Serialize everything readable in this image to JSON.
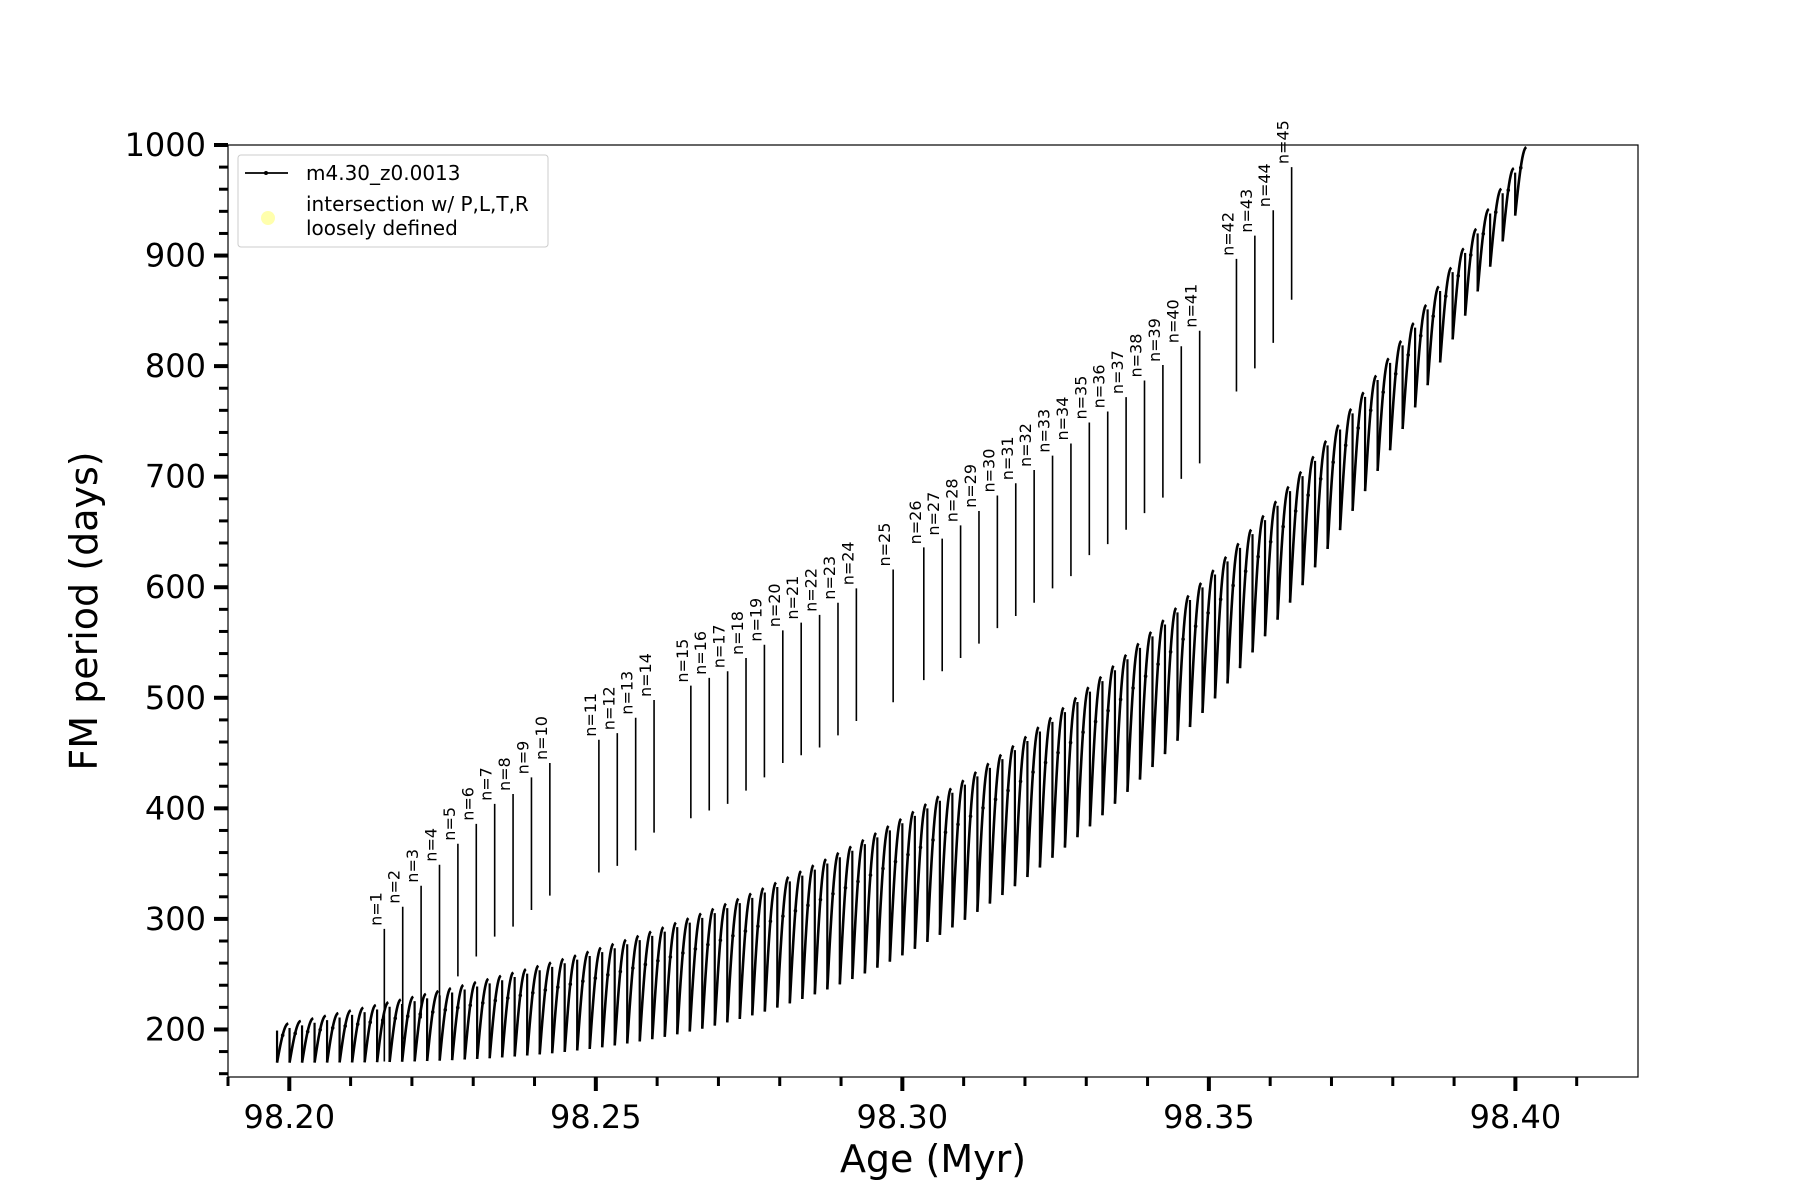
{
  "chart_data": {
    "type": "line",
    "title": "",
    "xlabel": "Age (Myr)",
    "ylabel": "FM period (days)",
    "xlim": [
      98.19,
      98.42
    ],
    "ylim": [
      157,
      1000
    ],
    "grid": false,
    "x_ticks": [
      "98.20",
      "98.25",
      "98.30",
      "98.35",
      "98.40"
    ],
    "y_ticks": [
      "200",
      "300",
      "400",
      "500",
      "600",
      "700",
      "800",
      "900",
      "1000"
    ],
    "x_tick_values": [
      98.2,
      98.25,
      98.3,
      98.35,
      98.4
    ],
    "y_tick_values": [
      200,
      300,
      400,
      500,
      600,
      700,
      800,
      900,
      1000
    ],
    "legend": {
      "placement": "top-left",
      "entries": [
        {
          "label": "m4.30_z0.0013",
          "marker": "line-dot",
          "color": "#000000"
        },
        {
          "label_lines": [
            "intersection w/ P,L,T,R",
            "loosely defined"
          ],
          "marker": "circle",
          "color": "#ffff99"
        }
      ]
    },
    "series": [
      {
        "name": "m4.30_z0.0013",
        "color": "#000000",
        "description_points": {
          "age_start": 98.198,
          "age_end": 98.402,
          "pulses": 100,
          "lower_envelope_start": 170,
          "lower_envelope_end": 960,
          "upper_envelope_start": 195,
          "upper_envelope_end": 1000
        }
      }
    ],
    "annotations": [
      {
        "text": "n=1",
        "x": 98.2155,
        "y": 291
      },
      {
        "text": "n=2",
        "x": 98.2185,
        "y": 311
      },
      {
        "text": "n=3",
        "x": 98.2215,
        "y": 330
      },
      {
        "text": "n=4",
        "x": 98.2245,
        "y": 349
      },
      {
        "text": "n=5",
        "x": 98.2275,
        "y": 368
      },
      {
        "text": "n=6",
        "x": 98.2305,
        "y": 386
      },
      {
        "text": "n=7",
        "x": 98.2335,
        "y": 404
      },
      {
        "text": "n=8",
        "x": 98.2365,
        "y": 413
      },
      {
        "text": "n=9",
        "x": 98.2395,
        "y": 428
      },
      {
        "text": "n=10",
        "x": 98.2425,
        "y": 441
      },
      {
        "text": "n=11",
        "x": 98.2505,
        "y": 462
      },
      {
        "text": "n=12",
        "x": 98.2535,
        "y": 468
      },
      {
        "text": "n=13",
        "x": 98.2565,
        "y": 482
      },
      {
        "text": "n=14",
        "x": 98.2595,
        "y": 498
      },
      {
        "text": "n=15",
        "x": 98.2655,
        "y": 511
      },
      {
        "text": "n=16",
        "x": 98.2685,
        "y": 518
      },
      {
        "text": "n=17",
        "x": 98.2715,
        "y": 524
      },
      {
        "text": "n=18",
        "x": 98.2745,
        "y": 536
      },
      {
        "text": "n=19",
        "x": 98.2775,
        "y": 548
      },
      {
        "text": "n=20",
        "x": 98.2805,
        "y": 561
      },
      {
        "text": "n=21",
        "x": 98.2835,
        "y": 568
      },
      {
        "text": "n=22",
        "x": 98.2865,
        "y": 575
      },
      {
        "text": "n=23",
        "x": 98.2895,
        "y": 586
      },
      {
        "text": "n=24",
        "x": 98.2925,
        "y": 599
      },
      {
        "text": "n=25",
        "x": 98.2985,
        "y": 616
      },
      {
        "text": "n=26",
        "x": 98.3035,
        "y": 636
      },
      {
        "text": "n=27",
        "x": 98.3065,
        "y": 644
      },
      {
        "text": "n=28",
        "x": 98.3095,
        "y": 656
      },
      {
        "text": "n=29",
        "x": 98.3125,
        "y": 669
      },
      {
        "text": "n=30",
        "x": 98.3155,
        "y": 683
      },
      {
        "text": "n=31",
        "x": 98.3185,
        "y": 694
      },
      {
        "text": "n=32",
        "x": 98.3215,
        "y": 706
      },
      {
        "text": "n=33",
        "x": 98.3245,
        "y": 719
      },
      {
        "text": "n=34",
        "x": 98.3275,
        "y": 730
      },
      {
        "text": "n=35",
        "x": 98.3305,
        "y": 749
      },
      {
        "text": "n=36",
        "x": 98.3335,
        "y": 759
      },
      {
        "text": "n=37",
        "x": 98.3365,
        "y": 772
      },
      {
        "text": "n=38",
        "x": 98.3395,
        "y": 787
      },
      {
        "text": "n=39",
        "x": 98.3425,
        "y": 801
      },
      {
        "text": "n=40",
        "x": 98.3455,
        "y": 818
      },
      {
        "text": "n=41",
        "x": 98.3485,
        "y": 832
      },
      {
        "text": "n=42",
        "x": 98.3545,
        "y": 897
      },
      {
        "text": "n=43",
        "x": 98.3575,
        "y": 918
      },
      {
        "text": "n=44",
        "x": 98.3605,
        "y": 941
      },
      {
        "text": "n=45",
        "x": 98.3635,
        "y": 980
      }
    ]
  }
}
